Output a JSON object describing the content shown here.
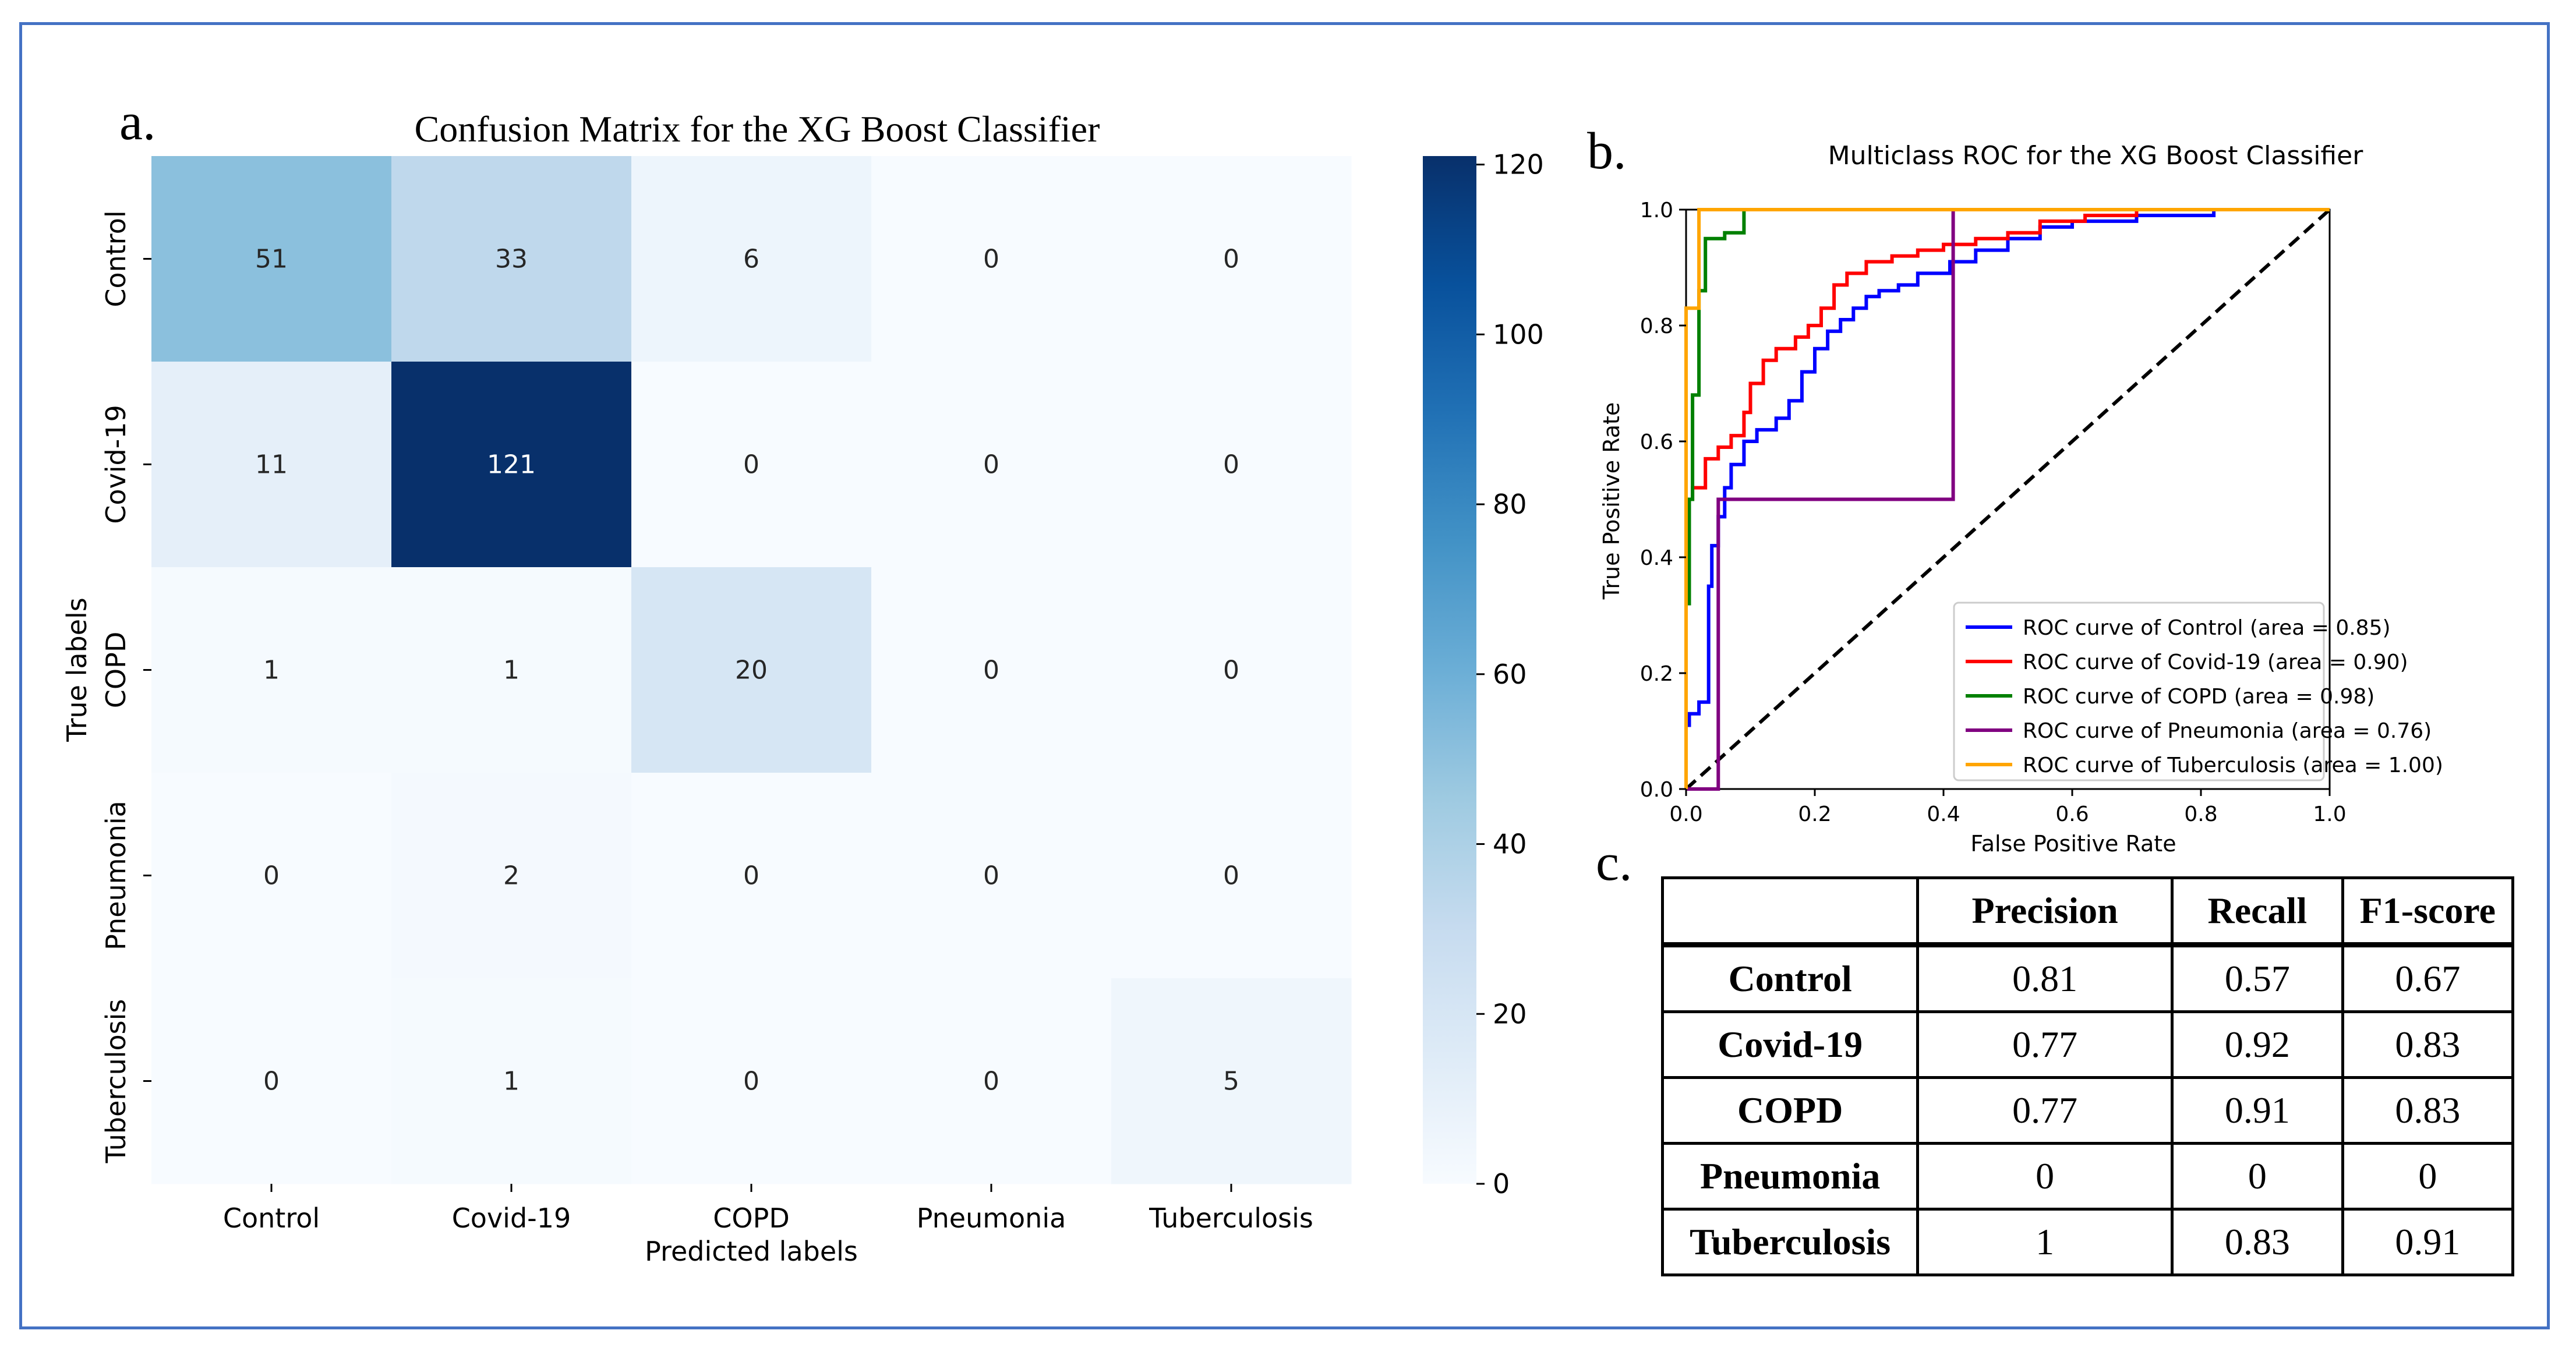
{
  "panel_labels": {
    "a": "a.",
    "b": "b.",
    "c": "c."
  },
  "colors": {
    "frame": "#4472c4",
    "colormap_low": "#f7fbff",
    "colormap_high": "#08306b",
    "roc_control": "#0000ff",
    "roc_covid": "#ff0000",
    "roc_copd": "#008000",
    "roc_pneumonia": "#800080",
    "roc_tuberculosis": "#ffa500"
  },
  "chart_data": [
    {
      "type": "heatmap",
      "title": "Confusion Matrix  for the XG Boost Classifier",
      "xlabel": "Predicted labels",
      "ylabel": "True labels",
      "x_categories": [
        "Control",
        "Covid-19",
        "COPD",
        "Pneumonia",
        "Tuberculosis"
      ],
      "y_categories": [
        "Control",
        "Covid-19",
        "COPD",
        "Pneumonia",
        "Tuberculosis"
      ],
      "values": [
        [
          51,
          33,
          6,
          0,
          0
        ],
        [
          11,
          121,
          0,
          0,
          0
        ],
        [
          1,
          1,
          20,
          0,
          0
        ],
        [
          0,
          2,
          0,
          0,
          0
        ],
        [
          0,
          1,
          0,
          0,
          5
        ]
      ],
      "colorbar": {
        "min": 0,
        "max": 121,
        "ticks": [
          0,
          20,
          40,
          60,
          80,
          100,
          120
        ]
      }
    },
    {
      "type": "line",
      "title": "Multiclass ROC for the XG Boost Classifier",
      "xlabel": "False Positive Rate",
      "ylabel": "True Positive Rate",
      "xlim": [
        0,
        1
      ],
      "ylim": [
        0,
        1
      ],
      "xticks": [
        "0.0",
        "0.2",
        "0.4",
        "0.6",
        "0.8",
        "1.0"
      ],
      "yticks": [
        "0.0",
        "0.2",
        "0.4",
        "0.6",
        "0.8",
        "1.0"
      ],
      "legend_position": "lower-right",
      "series": [
        {
          "name": "ROC curve of Control (area = 0.85)",
          "color": "#0000ff",
          "x": [
            0,
            0,
            0.005,
            0.005,
            0.02,
            0.02,
            0.035,
            0.035,
            0.04,
            0.04,
            0.05,
            0.05,
            0.06,
            0.06,
            0.07,
            0.07,
            0.09,
            0.09,
            0.11,
            0.11,
            0.14,
            0.14,
            0.16,
            0.16,
            0.18,
            0.18,
            0.2,
            0.2,
            0.22,
            0.22,
            0.24,
            0.24,
            0.26,
            0.26,
            0.28,
            0.28,
            0.3,
            0.3,
            0.33,
            0.33,
            0.36,
            0.36,
            0.41,
            0.41,
            0.45,
            0.45,
            0.5,
            0.5,
            0.55,
            0.55,
            0.6,
            0.6,
            0.7,
            0.7,
            0.82,
            0.82,
            1.0
          ],
          "y": [
            0,
            0.11,
            0.11,
            0.13,
            0.13,
            0.15,
            0.15,
            0.35,
            0.35,
            0.42,
            0.42,
            0.47,
            0.47,
            0.52,
            0.52,
            0.56,
            0.56,
            0.6,
            0.6,
            0.62,
            0.62,
            0.64,
            0.64,
            0.67,
            0.67,
            0.72,
            0.72,
            0.76,
            0.76,
            0.79,
            0.79,
            0.81,
            0.81,
            0.83,
            0.83,
            0.85,
            0.85,
            0.86,
            0.86,
            0.87,
            0.87,
            0.89,
            0.89,
            0.91,
            0.91,
            0.93,
            0.93,
            0.95,
            0.95,
            0.97,
            0.97,
            0.98,
            0.98,
            0.99,
            0.99,
            1.0,
            1.0
          ]
        },
        {
          "name": "ROC curve of Covid-19 (area = 0.90)",
          "color": "#ff0000",
          "x": [
            0,
            0,
            0.01,
            0.01,
            0.03,
            0.03,
            0.05,
            0.05,
            0.07,
            0.07,
            0.09,
            0.09,
            0.1,
            0.1,
            0.12,
            0.12,
            0.14,
            0.14,
            0.17,
            0.17,
            0.19,
            0.19,
            0.21,
            0.21,
            0.23,
            0.23,
            0.25,
            0.25,
            0.28,
            0.28,
            0.32,
            0.32,
            0.36,
            0.36,
            0.4,
            0.4,
            0.45,
            0.45,
            0.5,
            0.5,
            0.55,
            0.55,
            0.62,
            0.62,
            0.7,
            0.7,
            1.0
          ],
          "y": [
            0,
            0.5,
            0.5,
            0.52,
            0.52,
            0.57,
            0.57,
            0.59,
            0.59,
            0.61,
            0.61,
            0.65,
            0.65,
            0.7,
            0.7,
            0.74,
            0.74,
            0.76,
            0.76,
            0.78,
            0.78,
            0.8,
            0.8,
            0.83,
            0.83,
            0.87,
            0.87,
            0.89,
            0.89,
            0.91,
            0.91,
            0.92,
            0.92,
            0.93,
            0.93,
            0.94,
            0.94,
            0.95,
            0.95,
            0.96,
            0.96,
            0.98,
            0.98,
            0.99,
            0.99,
            1.0,
            1.0
          ]
        },
        {
          "name": "ROC curve of COPD (area = 0.98)",
          "color": "#008000",
          "x": [
            0,
            0,
            0.005,
            0.005,
            0.01,
            0.01,
            0.02,
            0.02,
            0.03,
            0.03,
            0.06,
            0.06,
            0.09,
            0.09,
            1.0
          ],
          "y": [
            0,
            0.32,
            0.32,
            0.5,
            0.5,
            0.68,
            0.68,
            0.86,
            0.86,
            0.95,
            0.95,
            0.96,
            0.96,
            1.0,
            1.0
          ]
        },
        {
          "name": "ROC curve of Pneumonia (area = 0.76)",
          "color": "#800080",
          "x": [
            0,
            0.05,
            0.05,
            0.415,
            0.415,
            1.0
          ],
          "y": [
            0,
            0,
            0.5,
            0.5,
            1.0,
            1.0
          ]
        },
        {
          "name": "ROC curve of Tuberculosis (area = 1.00)",
          "color": "#ffa500",
          "x": [
            0,
            0,
            0.02,
            0.02,
            1.0
          ],
          "y": [
            0,
            0.83,
            0.83,
            1.0,
            1.0
          ]
        }
      ],
      "reference_line": {
        "x": [
          0,
          1
        ],
        "y": [
          0,
          1
        ],
        "style": "dashed"
      }
    },
    {
      "type": "table",
      "columns": [
        "",
        "Precision",
        "Recall",
        "F1-score"
      ],
      "rows": [
        {
          "label": "Control",
          "precision": "0.81",
          "recall": "0.57",
          "f1": "0.67"
        },
        {
          "label": "Covid-19",
          "precision": "0.77",
          "recall": "0.92",
          "f1": "0.83"
        },
        {
          "label": "COPD",
          "precision": "0.77",
          "recall": "0.91",
          "f1": "0.83"
        },
        {
          "label": "Pneumonia",
          "precision": "0",
          "recall": "0",
          "f1": "0"
        },
        {
          "label": "Tuberculosis",
          "precision": "1",
          "recall": "0.83",
          "f1": "0.91"
        }
      ]
    }
  ]
}
